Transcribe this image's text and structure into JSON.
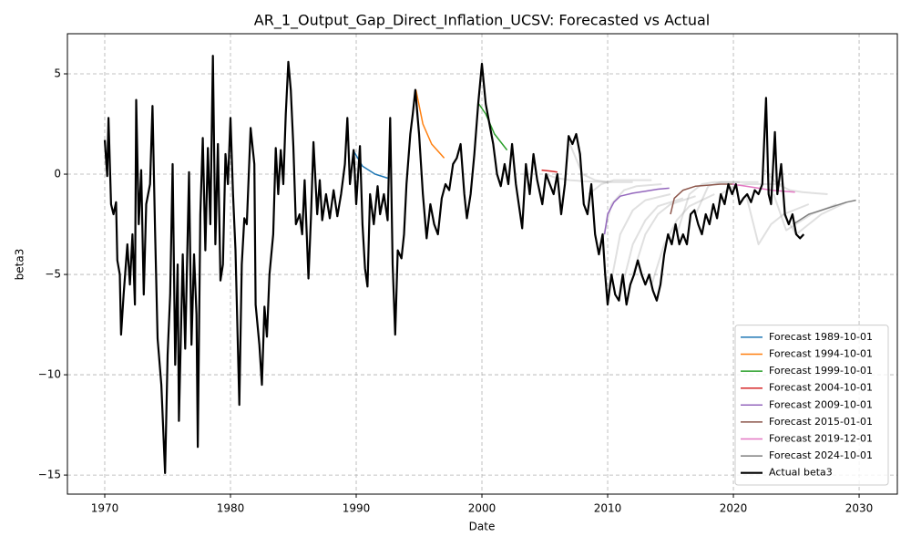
{
  "chart_data": {
    "type": "line",
    "title": "AR_1_Output_Gap_Direct_Inflation_UCSV: Forecasted vs Actual",
    "x_label": "Date",
    "y_label": "beta3",
    "xlim": [
      1967.03,
      2033.04
    ],
    "ylim": [
      -15.95,
      7.0
    ],
    "xticks": [
      1970,
      1980,
      1990,
      2000,
      2010,
      2020,
      2030
    ],
    "yticks": [
      {
        "value": -15,
        "label": "−15"
      },
      {
        "value": -10,
        "label": "−10"
      },
      {
        "value": -5,
        "label": "−5"
      },
      0,
      5
    ],
    "grid": true,
    "legend": "lower right",
    "background_forecasts_color": "#999999",
    "background_forecasts": [
      {
        "x": [
          2005.0,
          2006,
          2007,
          2008,
          2010
        ],
        "values": [
          0.0,
          -0.2,
          -0.3,
          -0.35,
          -0.4
        ]
      },
      {
        "x": [
          2007.0,
          2008,
          2009,
          2010,
          2012
        ],
        "values": [
          1.5,
          0.0,
          -0.3,
          -0.4,
          -0.4
        ]
      },
      {
        "x": [
          2008.5,
          2009.5,
          2010.5,
          2011.5,
          2013.5
        ],
        "values": [
          -1.0,
          -0.5,
          -0.3,
          -0.3,
          -0.3
        ]
      },
      {
        "x": [
          2009.3,
          2010.3,
          2011.3,
          2012.3,
          2014.3
        ],
        "values": [
          -4.0,
          -1.5,
          -0.8,
          -0.6,
          -0.5
        ]
      },
      {
        "x": [
          2010.0,
          2011,
          2012,
          2013,
          2015
        ],
        "values": [
          -6.3,
          -3.0,
          -1.8,
          -1.3,
          -1.0
        ]
      },
      {
        "x": [
          2011.0,
          2012,
          2013,
          2014,
          2016
        ],
        "values": [
          -6.0,
          -3.5,
          -2.3,
          -1.6,
          -1.2
        ]
      },
      {
        "x": [
          2012.0,
          2013,
          2014,
          2015,
          2017
        ],
        "values": [
          -5.0,
          -3.0,
          -2.0,
          -1.5,
          -1.1
        ]
      },
      {
        "x": [
          2013.5,
          2014.5,
          2015.5,
          2016.5,
          2018.5
        ],
        "values": [
          -5.5,
          -3.5,
          -2.3,
          -1.6,
          -1.0
        ]
      },
      {
        "x": [
          2015.5,
          2016.5,
          2017.5,
          2018.5,
          2020.5
        ],
        "values": [
          -3.0,
          -1.0,
          -0.5,
          -0.4,
          -0.4
        ]
      },
      {
        "x": [
          2017.0,
          2018,
          2019,
          2020,
          2022
        ],
        "values": [
          -2.0,
          -0.6,
          -0.4,
          -0.4,
          -0.4
        ]
      },
      {
        "x": [
          2019.0,
          2020,
          2021,
          2022,
          2024
        ],
        "values": [
          -1.0,
          -0.6,
          -0.5,
          -0.5,
          -0.5
        ]
      },
      {
        "x": [
          2021.0,
          2022,
          2023,
          2024,
          2026
        ],
        "values": [
          -1.0,
          -3.5,
          -2.5,
          -2.0,
          -1.5
        ]
      },
      {
        "x": [
          2022.5,
          2023.5,
          2024.5,
          2025.5,
          2027.5
        ],
        "values": [
          0.2,
          -0.5,
          -0.8,
          -0.9,
          -1.0
        ]
      },
      {
        "x": [
          2023.2,
          2024.2,
          2025.2,
          2026.2,
          2028.2
        ],
        "values": [
          -1.0,
          -2.8,
          -2.4,
          -2.0,
          -1.5
        ]
      },
      {
        "x": [
          2024.0,
          2025,
          2026,
          2027,
          2029
        ],
        "values": [
          -2.0,
          -3.0,
          -2.5,
          -2.0,
          -1.4
        ]
      }
    ],
    "series": [
      {
        "name": "Forecast 1989-10-01",
        "color": "#1f77b4",
        "x": [
          1989.75,
          1990.5,
          1991.5,
          1992.5
        ],
        "values": [
          1.2,
          0.4,
          0.0,
          -0.2
        ]
      },
      {
        "name": "Forecast 1994-10-01",
        "color": "#ff7f0e",
        "x": [
          1994.75,
          1995.3,
          1996,
          1997
        ],
        "values": [
          4.2,
          2.5,
          1.5,
          0.8
        ]
      },
      {
        "name": "Forecast 1999-10-01",
        "color": "#2ca02c",
        "x": [
          1999.75,
          2000.3,
          2001,
          2002
        ],
        "values": [
          3.5,
          3.0,
          2.0,
          1.2
        ]
      },
      {
        "name": "Forecast 2004-10-01",
        "color": "#d62728",
        "x": [
          2004.75,
          2005.5,
          2006.0
        ],
        "values": [
          0.2,
          0.15,
          0.1
        ]
      },
      {
        "name": "Forecast 2009-10-01",
        "color": "#9467bd",
        "x": [
          2009.75,
          2010.0,
          2010.5,
          2011,
          2012,
          2013,
          2014,
          2014.9
        ],
        "values": [
          -3.0,
          -2.0,
          -1.4,
          -1.1,
          -0.95,
          -0.85,
          -0.75,
          -0.7
        ]
      },
      {
        "name": "Forecast 2015-01-01",
        "color": "#8c564b",
        "x": [
          2015.0,
          2015.3,
          2016,
          2017,
          2018,
          2019,
          2020
        ],
        "values": [
          -2.0,
          -1.2,
          -0.8,
          -0.6,
          -0.55,
          -0.5,
          -0.5
        ]
      },
      {
        "name": "Forecast 2019-12-01",
        "color": "#e377c2",
        "x": [
          2019.9,
          2021,
          2022,
          2023,
          2024,
          2024.9
        ],
        "values": [
          -0.5,
          -0.6,
          -0.7,
          -0.8,
          -0.85,
          -0.9
        ]
      },
      {
        "name": "Forecast 2024-10-01",
        "color": "#7f7f7f",
        "x": [
          2024.75,
          2026,
          2027,
          2028,
          2029,
          2029.75
        ],
        "values": [
          -2.5,
          -2.0,
          -1.8,
          -1.6,
          -1.4,
          -1.3
        ]
      },
      {
        "name": "Actual beta3",
        "color": "#000000",
        "width": 2.2,
        "x": [
          1970,
          1970.2,
          1970.3,
          1970.5,
          1970.7,
          1970.9,
          1971.0,
          1971.2,
          1971.3,
          1971.5,
          1971.8,
          1972.0,
          1972.2,
          1972.4,
          1972.5,
          1972.7,
          1972.9,
          1973.1,
          1973.3,
          1973.6,
          1973.8,
          1974.0,
          1974.2,
          1974.5,
          1974.8,
          1975.0,
          1975.2,
          1975.4,
          1975.6,
          1975.8,
          1975.9,
          1976.2,
          1976.4,
          1976.7,
          1976.9,
          1977.1,
          1977.3,
          1977.4,
          1977.6,
          1977.8,
          1978.0,
          1978.2,
          1978.4,
          1978.6,
          1978.8,
          1979.0,
          1979.2,
          1979.4,
          1979.6,
          1979.8,
          1980.0,
          1980.2,
          1980.4,
          1980.7,
          1980.9,
          1981.1,
          1981.3,
          1981.6,
          1981.9,
          1982.0,
          1982.3,
          1982.5,
          1982.7,
          1982.9,
          1983.1,
          1983.4,
          1983.6,
          1983.8,
          1984.0,
          1984.2,
          1984.4,
          1984.6,
          1984.8,
          1985.0,
          1985.2,
          1985.5,
          1985.7,
          1985.9,
          1986.2,
          1986.4,
          1986.6,
          1986.9,
          1987.1,
          1987.3,
          1987.6,
          1987.9,
          1988.2,
          1988.5,
          1988.8,
          1989.1,
          1989.3,
          1989.5,
          1989.8,
          1990.0,
          1990.3,
          1990.5,
          1990.7,
          1990.9,
          1991.1,
          1991.4,
          1991.7,
          1991.9,
          1992.2,
          1992.5,
          1992.7,
          1992.9,
          1993.1,
          1993.3,
          1993.6,
          1993.8,
          1994.0,
          1994.3,
          1994.5,
          1994.7,
          1995.0,
          1995.3,
          1995.6,
          1995.9,
          1996.2,
          1996.5,
          1996.8,
          1997.1,
          1997.4,
          1997.7,
          1998.0,
          1998.3,
          1998.6,
          1998.8,
          1999.1,
          1999.4,
          1999.7,
          2000.0,
          2000.3,
          2000.6,
          2000.9,
          2001.2,
          2001.5,
          2001.8,
          2002.1,
          2002.4,
          2002.7,
          2003.0,
          2003.2,
          2003.5,
          2003.8,
          2004.1,
          2004.4,
          2004.8,
          2005.1,
          2005.4,
          2005.7,
          2006.0,
          2006.3,
          2006.6,
          2006.9,
          2007.2,
          2007.5,
          2007.8,
          2008.1,
          2008.4,
          2008.7,
          2009.0,
          2009.3,
          2009.6,
          2009.8,
          2010.0,
          2010.3,
          2010.6,
          2010.9,
          2011.2,
          2011.5,
          2011.8,
          2012.1,
          2012.4,
          2012.7,
          2013.0,
          2013.3,
          2013.6,
          2013.9,
          2014.2,
          2014.5,
          2014.8,
          2015.1,
          2015.4,
          2015.7,
          2016.0,
          2016.3,
          2016.6,
          2016.9,
          2017.2,
          2017.5,
          2017.8,
          2018.1,
          2018.4,
          2018.7,
          2019.0,
          2019.3,
          2019.6,
          2019.9,
          2020.2,
          2020.5,
          2020.8,
          2021.1,
          2021.4,
          2021.7,
          2022.0,
          2022.3,
          2022.6,
          2022.8,
          2023.0,
          2023.3,
          2023.5,
          2023.8,
          2024.1,
          2024.4,
          2024.7,
          2025.0,
          2025.3,
          2025.6
        ],
        "values": [
          1.7,
          -0.1,
          2.8,
          -1.5,
          -2.0,
          -1.4,
          -4.3,
          -5.0,
          -8.0,
          -6.0,
          -3.5,
          -5.5,
          -3.0,
          -6.5,
          3.7,
          -2.5,
          0.2,
          -6.0,
          -1.5,
          -0.5,
          3.4,
          -2.8,
          -8.2,
          -10.5,
          -14.9,
          -9.0,
          -6.0,
          0.5,
          -9.5,
          -4.5,
          -12.3,
          -4.0,
          -8.7,
          0.1,
          -8.5,
          -4.0,
          -7.0,
          -13.6,
          -2.0,
          1.8,
          -3.8,
          1.3,
          -2.5,
          5.9,
          -3.5,
          1.5,
          -5.3,
          -4.5,
          1.0,
          -0.5,
          2.8,
          -1.0,
          -3.8,
          -11.5,
          -4.5,
          -2.2,
          -2.5,
          2.3,
          0.5,
          -6.5,
          -8.5,
          -10.5,
          -6.6,
          -8.1,
          -5.0,
          -3.0,
          1.3,
          -1.0,
          1.2,
          -0.5,
          3.0,
          5.6,
          4.2,
          1.4,
          -2.5,
          -2.0,
          -3.0,
          -0.3,
          -5.2,
          -2.2,
          1.6,
          -2.0,
          -0.3,
          -2.3,
          -1.0,
          -2.2,
          -0.8,
          -2.1,
          -1.0,
          0.5,
          2.8,
          -0.5,
          1.2,
          -1.5,
          1.4,
          -2.5,
          -4.7,
          -5.6,
          -1.0,
          -2.5,
          -0.6,
          -2.0,
          -1.0,
          -2.3,
          2.8,
          -4.5,
          -8.0,
          -3.8,
          -4.2,
          -3.0,
          -0.5,
          2.0,
          3.0,
          4.2,
          2.0,
          -1.0,
          -3.2,
          -1.5,
          -2.5,
          -3.0,
          -1.2,
          -0.5,
          -0.8,
          0.5,
          0.8,
          1.5,
          -1.0,
          -2.2,
          -1.0,
          1.0,
          3.5,
          5.5,
          3.5,
          2.5,
          1.5,
          0.0,
          -0.6,
          0.5,
          -0.5,
          1.5,
          -0.5,
          -1.8,
          -2.7,
          0.5,
          -1.0,
          1.0,
          -0.3,
          -1.5,
          0.0,
          -0.5,
          -1.0,
          0.0,
          -2.0,
          -0.5,
          1.9,
          1.5,
          2.0,
          1.0,
          -1.5,
          -2.0,
          -0.5,
          -3.0,
          -4.0,
          -3.0,
          -5.0,
          -6.5,
          -5.0,
          -6.0,
          -6.3,
          -5.0,
          -6.5,
          -5.5,
          -5.0,
          -4.3,
          -5.0,
          -5.5,
          -5.0,
          -5.8,
          -6.3,
          -5.5,
          -4.0,
          -3.0,
          -3.5,
          -2.5,
          -3.5,
          -3.0,
          -3.5,
          -2.0,
          -1.8,
          -2.5,
          -3.0,
          -2.0,
          -2.5,
          -1.5,
          -2.2,
          -1.0,
          -1.5,
          -0.5,
          -1.0,
          -0.5,
          -1.5,
          -1.2,
          -1.0,
          -1.4,
          -0.8,
          -1.0,
          -0.5,
          3.8,
          -1.0,
          -1.5,
          2.1,
          -1.0,
          0.5,
          -2.0,
          -2.5,
          -2.0,
          -3.0,
          -3.2,
          -3.0
        ]
      }
    ]
  }
}
